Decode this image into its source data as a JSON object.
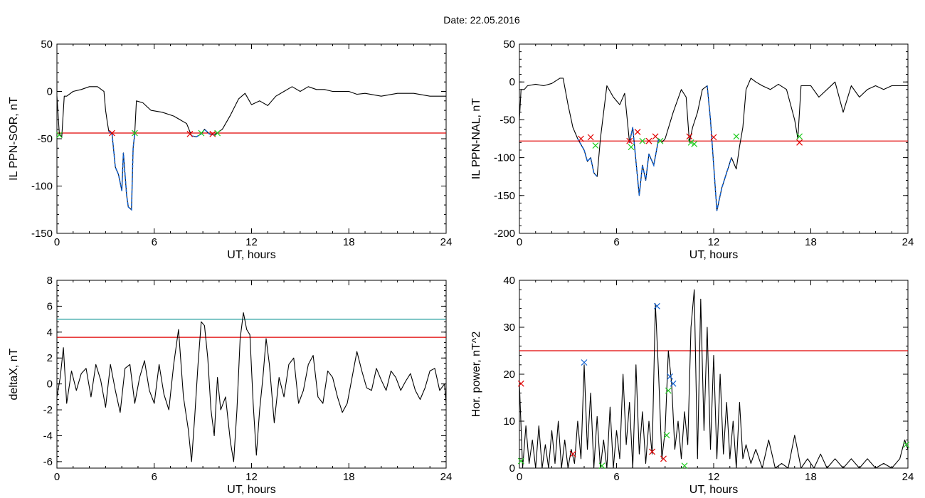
{
  "title": "Date:  22.05.2016",
  "colors": {
    "trace": "#000000",
    "threshold_red": "#e00000",
    "threshold_teal": "#1a9a9a",
    "segment_blue": "#1060d0",
    "mark_red": "#e00000",
    "mark_green": "#22cc22",
    "mark_blue": "#1060d0"
  },
  "chart_data": [
    {
      "id": "sor",
      "type": "line",
      "xlabel": "UT, hours",
      "ylabel": "IL PPN-SOR, nT",
      "xlim": [
        0,
        24
      ],
      "ylim": [
        -150,
        50
      ],
      "xticks": [
        "0",
        "6",
        "12",
        "18",
        "24"
      ],
      "yticks": [
        "50",
        "0",
        "-50",
        "-100",
        "-150"
      ],
      "grid": false,
      "threshold": {
        "value": -44,
        "color": "red"
      },
      "series": [
        {
          "x": [
            0,
            0.15,
            0.3,
            0.45,
            0.6,
            1,
            1.5,
            2,
            2.5,
            2.9,
            3.0,
            3.1,
            3.2,
            3.4,
            3.6,
            3.8,
            4.0,
            4.1,
            4.3,
            4.4,
            4.6,
            4.7,
            4.8,
            4.9,
            5.3,
            5.8,
            6.5,
            7.2,
            8.0,
            8.3,
            8.6,
            8.9,
            9.1,
            9.4,
            9.7,
            10.2,
            10.7,
            11.2,
            11.6,
            12.0,
            12.5,
            13,
            13.5,
            14,
            14.5,
            15,
            15.5,
            16,
            16.5,
            17,
            17.5,
            18,
            18.5,
            19,
            20,
            21,
            22,
            23,
            24
          ],
          "y": [
            -5,
            -45,
            -48,
            -5,
            -5,
            0,
            2,
            5,
            5,
            0,
            -20,
            -32,
            -42,
            -45,
            -80,
            -88,
            -105,
            -65,
            -110,
            -122,
            -125,
            -60,
            -44,
            -10,
            -12,
            -20,
            -22,
            -26,
            -34,
            -47,
            -48,
            -45,
            -40,
            -45,
            -46,
            -40,
            -25,
            -8,
            -2,
            -14,
            -10,
            -15,
            -5,
            0,
            5,
            0,
            5,
            2,
            2,
            0,
            0,
            0,
            -3,
            -2,
            -5,
            -2,
            -2,
            -5,
            -5
          ]
        }
      ],
      "segments": [
        {
          "x_start": 3.2,
          "x_end": 4.8
        },
        {
          "x_start": 8.3,
          "x_end": 9.8
        }
      ],
      "markers": [
        {
          "x": 0.15,
          "y": -46,
          "color": "green"
        },
        {
          "x": 3.4,
          "y": -44,
          "color": "red"
        },
        {
          "x": 4.8,
          "y": -44,
          "color": "green"
        },
        {
          "x": 8.2,
          "y": -45,
          "color": "red"
        },
        {
          "x": 8.9,
          "y": -44,
          "color": "green"
        },
        {
          "x": 9.6,
          "y": -45,
          "color": "red"
        },
        {
          "x": 9.9,
          "y": -44,
          "color": "green"
        }
      ]
    },
    {
      "id": "nal",
      "type": "line",
      "xlabel": "UT, hours",
      "ylabel": "IL PPN-NAL, nT",
      "xlim": [
        0,
        24
      ],
      "ylim": [
        -200,
        50
      ],
      "xticks": [
        "0",
        "6",
        "12",
        "18",
        "24"
      ],
      "yticks": [
        "50",
        "0",
        "-50",
        "-100",
        "-150",
        "-200"
      ],
      "grid": false,
      "threshold": {
        "value": -78,
        "color": "red"
      },
      "series": [
        {
          "x": [
            0,
            0.1,
            0.3,
            0.5,
            1,
            1.5,
            2,
            2.5,
            2.7,
            3.0,
            3.3,
            3.6,
            4.0,
            4.2,
            4.4,
            4.6,
            4.8,
            5.0,
            5.4,
            5.8,
            6.2,
            6.5,
            6.8,
            7.0,
            7.2,
            7.4,
            7.6,
            7.8,
            8.0,
            8.3,
            8.6,
            8.8,
            9.0,
            9.5,
            10.0,
            10.3,
            10.5,
            10.7,
            11.0,
            11.3,
            11.6,
            11.8,
            12.0,
            12.2,
            12.5,
            12.8,
            13.1,
            13.4,
            13.6,
            13.8,
            14.0,
            14.3,
            14.6,
            15,
            15.5,
            16,
            16.5,
            17,
            17.2,
            17.4,
            18,
            18.5,
            19,
            19.5,
            20,
            20.5,
            21,
            21.5,
            22,
            22.5,
            23,
            24
          ],
          "y": [
            -50,
            -10,
            -10,
            -5,
            -3,
            -5,
            -2,
            5,
            5,
            -30,
            -60,
            -75,
            -90,
            -105,
            -100,
            -120,
            -125,
            -75,
            -5,
            -20,
            -30,
            -15,
            -80,
            -60,
            -105,
            -150,
            -110,
            -130,
            -95,
            -110,
            -75,
            -80,
            -75,
            -40,
            -10,
            -20,
            -80,
            -60,
            -40,
            -10,
            -5,
            -50,
            -110,
            -170,
            -140,
            -120,
            -100,
            -115,
            -85,
            -60,
            -10,
            5,
            0,
            -5,
            -10,
            -3,
            -10,
            -50,
            -75,
            -5,
            -5,
            -20,
            -10,
            0,
            -40,
            -5,
            -20,
            -10,
            -5,
            -10,
            -5,
            -5
          ]
        }
      ],
      "segments": [
        {
          "x_start": 3.6,
          "x_end": 4.8
        },
        {
          "x_start": 6.8,
          "x_end": 8.8
        },
        {
          "x_start": 11.6,
          "x_end": 13.3
        }
      ],
      "markers": [
        {
          "x": 3.8,
          "y": -75,
          "color": "red"
        },
        {
          "x": 4.4,
          "y": -73,
          "color": "red"
        },
        {
          "x": 4.7,
          "y": -84,
          "color": "green"
        },
        {
          "x": 6.8,
          "y": -78,
          "color": "red"
        },
        {
          "x": 6.9,
          "y": -86,
          "color": "green"
        },
        {
          "x": 7.3,
          "y": -66,
          "color": "red"
        },
        {
          "x": 7.6,
          "y": -78,
          "color": "green"
        },
        {
          "x": 8.0,
          "y": -78,
          "color": "red"
        },
        {
          "x": 8.4,
          "y": -72,
          "color": "red"
        },
        {
          "x": 8.7,
          "y": -78,
          "color": "green"
        },
        {
          "x": 10.5,
          "y": -72,
          "color": "red"
        },
        {
          "x": 10.6,
          "y": -80,
          "color": "green"
        },
        {
          "x": 10.8,
          "y": -82,
          "color": "green"
        },
        {
          "x": 12.0,
          "y": -73,
          "color": "red"
        },
        {
          "x": 13.4,
          "y": -72,
          "color": "green"
        },
        {
          "x": 17.3,
          "y": -72,
          "color": "green"
        },
        {
          "x": 17.3,
          "y": -80,
          "color": "red"
        }
      ]
    },
    {
      "id": "deltax",
      "type": "line",
      "xlabel": "UT, hours",
      "ylabel": "deltaX, nT",
      "xlim": [
        0,
        24
      ],
      "ylim": [
        -6.5,
        8
      ],
      "xticks": [
        "0",
        "6",
        "12",
        "18",
        "24"
      ],
      "yticks": [
        "8",
        "6",
        "4",
        "2",
        "0",
        "-2",
        "-4",
        "-6"
      ],
      "grid": false,
      "thresholds": [
        {
          "value": 5,
          "color": "teal"
        },
        {
          "value": 3.6,
          "color": "red"
        }
      ],
      "series": [
        {
          "x": [
            0,
            0.2,
            0.4,
            0.6,
            0.9,
            1.2,
            1.5,
            1.8,
            2.1,
            2.4,
            2.7,
            3.0,
            3.3,
            3.6,
            3.9,
            4.2,
            4.5,
            4.8,
            5.1,
            5.4,
            5.7,
            6.0,
            6.3,
            6.6,
            6.9,
            7.2,
            7.5,
            7.8,
            8.1,
            8.3,
            8.5,
            8.7,
            8.9,
            9.1,
            9.3,
            9.5,
            9.7,
            9.9,
            10.1,
            10.4,
            10.7,
            10.9,
            11.1,
            11.3,
            11.5,
            11.7,
            11.9,
            12.1,
            12.3,
            12.5,
            12.7,
            12.9,
            13.1,
            13.4,
            13.7,
            14.0,
            14.3,
            14.6,
            14.9,
            15.2,
            15.5,
            15.8,
            16.1,
            16.4,
            16.7,
            17.0,
            17.3,
            17.6,
            17.9,
            18.2,
            18.5,
            18.8,
            19.1,
            19.4,
            19.7,
            20.0,
            20.3,
            20.6,
            20.9,
            21.2,
            21.5,
            21.8,
            22.1,
            22.4,
            22.7,
            23.0,
            23.3,
            23.6,
            23.9,
            24
          ],
          "y": [
            -1,
            0.5,
            2.8,
            -1.5,
            1,
            -0.5,
            0.8,
            1.2,
            -1,
            1.5,
            0.3,
            -1.8,
            1.5,
            -0.5,
            -2.2,
            1.2,
            1.5,
            -1.5,
            0.5,
            1.8,
            -0.5,
            -1.5,
            1.5,
            -0.8,
            -2,
            1.5,
            4.2,
            -1,
            -3.5,
            -6,
            -2.5,
            1.5,
            4.8,
            4.5,
            2,
            -2,
            -4,
            0.5,
            -2,
            -1,
            -4.5,
            -6,
            -2,
            3.5,
            5.5,
            4.2,
            3.8,
            -1.5,
            -5.5,
            -2,
            0.5,
            3.5,
            1.5,
            -3,
            0.5,
            -1,
            1.5,
            2,
            -1.5,
            -0.5,
            1.5,
            2.2,
            -1,
            -1.5,
            1,
            0.5,
            -1,
            -2.2,
            -1.5,
            0.5,
            2.5,
            1,
            -0.3,
            -0.5,
            1.2,
            0.3,
            -0.5,
            1,
            0.5,
            -0.5,
            0.2,
            0.8,
            -0.5,
            -1.2,
            -0.3,
            1,
            1.2,
            -0.5,
            0,
            -1.5
          ]
        }
      ]
    },
    {
      "id": "power",
      "type": "line",
      "xlabel": "UT, hours",
      "ylabel": "Hor. power, nT^2",
      "xlim": [
        0,
        24
      ],
      "ylim": [
        0,
        40
      ],
      "xticks": [
        "0",
        "6",
        "12",
        "18",
        "24"
      ],
      "yticks": [
        "40",
        "30",
        "20",
        "10",
        "0"
      ],
      "grid": false,
      "threshold": {
        "value": 25,
        "color": "red"
      },
      "series": [
        {
          "x": [
            0,
            0.2,
            0.4,
            0.6,
            0.8,
            1.0,
            1.2,
            1.4,
            1.6,
            1.8,
            2.0,
            2.2,
            2.4,
            2.6,
            2.8,
            3.0,
            3.2,
            3.4,
            3.6,
            3.8,
            4.0,
            4.2,
            4.4,
            4.6,
            4.8,
            5.0,
            5.2,
            5.4,
            5.6,
            5.8,
            6.0,
            6.2,
            6.4,
            6.6,
            6.8,
            7.0,
            7.2,
            7.4,
            7.6,
            7.8,
            8.0,
            8.2,
            8.4,
            8.6,
            8.8,
            9.0,
            9.2,
            9.4,
            9.6,
            9.8,
            10.0,
            10.2,
            10.4,
            10.6,
            10.8,
            11.0,
            11.2,
            11.4,
            11.6,
            11.8,
            12.0,
            12.2,
            12.4,
            12.6,
            12.8,
            13.0,
            13.2,
            13.4,
            13.6,
            13.8,
            14.0,
            14.3,
            14.6,
            15.0,
            15.4,
            15.8,
            16.2,
            16.6,
            17.0,
            17.4,
            17.8,
            18.2,
            18.6,
            19,
            19.5,
            20,
            20.5,
            21,
            21.5,
            22,
            22.5,
            23,
            23.5,
            23.8,
            24
          ],
          "y": [
            18,
            0,
            9,
            1,
            6,
            0,
            9,
            0,
            5,
            0,
            8,
            1,
            10,
            0,
            6,
            0,
            4,
            1,
            10,
            2,
            22,
            4,
            16,
            0,
            11,
            0,
            6,
            0,
            13,
            0,
            8,
            2,
            20,
            5,
            14,
            0,
            22,
            3,
            12,
            1,
            10,
            3,
            35,
            20,
            2,
            8,
            25,
            18,
            4,
            10,
            2,
            12,
            5,
            30,
            38,
            2,
            36,
            8,
            30,
            4,
            24,
            2,
            20,
            3,
            14,
            2,
            10,
            0,
            14,
            2,
            5,
            1,
            4,
            0,
            6,
            0,
            1,
            0,
            7,
            0,
            2,
            0,
            3,
            0,
            2,
            0,
            2,
            0,
            2,
            0,
            1,
            0,
            2,
            6,
            4
          ]
        }
      ],
      "markers": [
        {
          "x": 0.1,
          "y": 18,
          "color": "red"
        },
        {
          "x": 0.1,
          "y": 1.5,
          "color": "green"
        },
        {
          "x": 3.3,
          "y": 3,
          "color": "red"
        },
        {
          "x": 4.0,
          "y": 22.5,
          "color": "blue"
        },
        {
          "x": 5.1,
          "y": 0.5,
          "color": "green"
        },
        {
          "x": 8.2,
          "y": 3.5,
          "color": "red"
        },
        {
          "x": 8.5,
          "y": 34.5,
          "color": "blue"
        },
        {
          "x": 8.9,
          "y": 2,
          "color": "red"
        },
        {
          "x": 9.1,
          "y": 7,
          "color": "green"
        },
        {
          "x": 9.2,
          "y": 16.5,
          "color": "green"
        },
        {
          "x": 9.3,
          "y": 19.5,
          "color": "blue"
        },
        {
          "x": 9.5,
          "y": 18,
          "color": "blue"
        },
        {
          "x": 10.2,
          "y": 0.5,
          "color": "green"
        },
        {
          "x": 23.9,
          "y": 5,
          "color": "green"
        }
      ]
    }
  ]
}
